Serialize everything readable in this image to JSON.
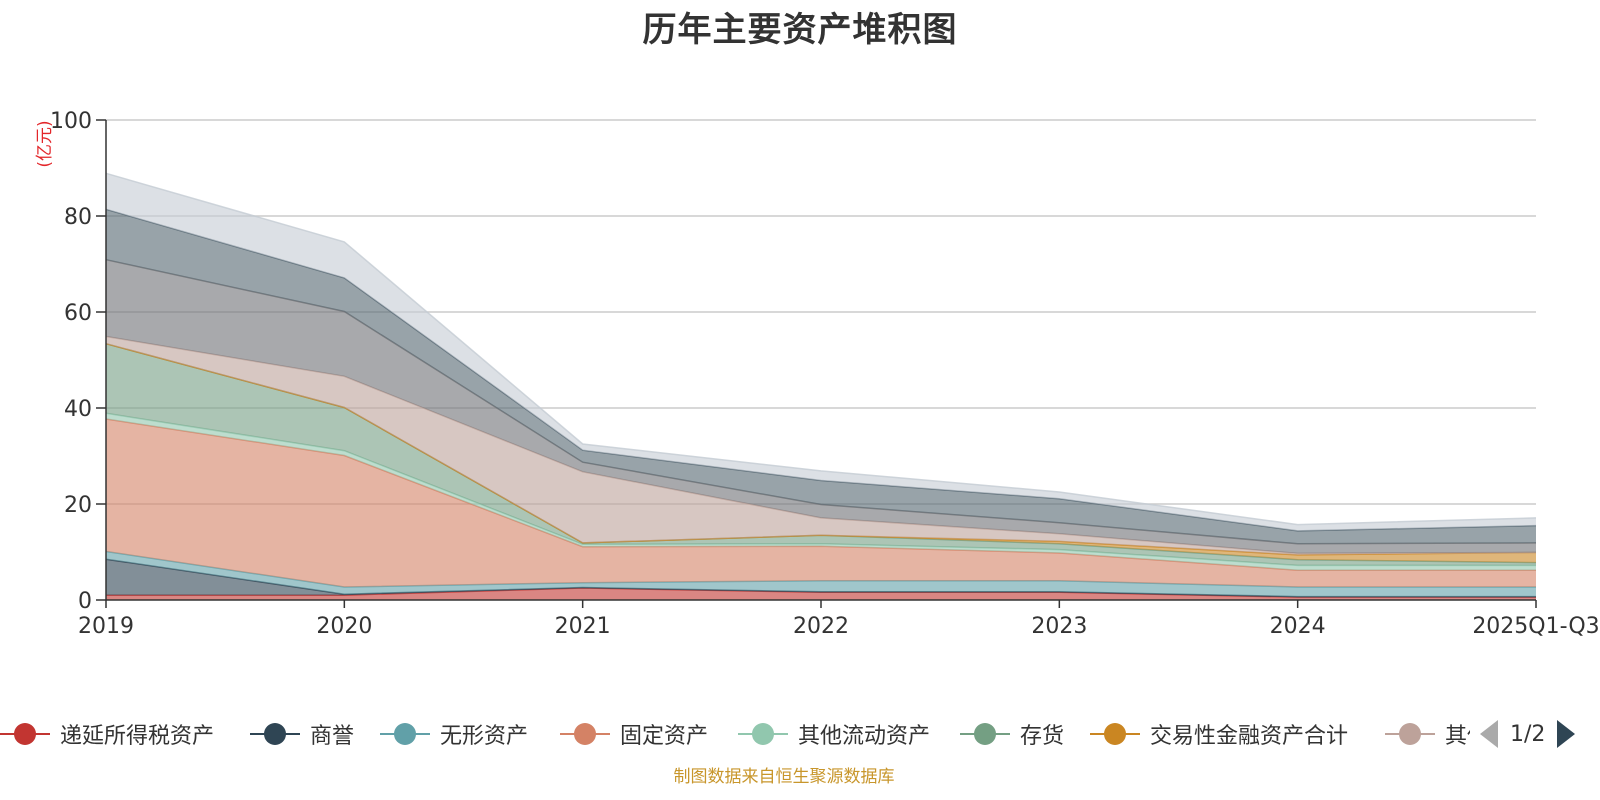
{
  "chart_data": {
    "type": "area",
    "title": "历年主要资产堆积图",
    "ylabel": "(亿元)",
    "ylim": [
      0,
      100
    ],
    "yticks": [
      0,
      20,
      40,
      60,
      80,
      100
    ],
    "categories": [
      "2019",
      "2020",
      "2021",
      "2022",
      "2023",
      "2024",
      "2025Q1-Q3"
    ],
    "series": [
      {
        "name": "递延所得税资产",
        "values": [
          1.0,
          1.0,
          2.5,
          1.6,
          1.6,
          0.6,
          0.6
        ]
      },
      {
        "name": "商誉",
        "values": [
          7.5,
          0.2,
          0.1,
          0.1,
          0.1,
          0.1,
          0.1
        ]
      },
      {
        "name": "无形资产",
        "values": [
          1.6,
          1.5,
          1.0,
          2.3,
          2.3,
          2.0,
          2.0
        ]
      },
      {
        "name": "固定资产",
        "values": [
          27.6,
          27.4,
          7.5,
          7.2,
          5.8,
          3.5,
          3.5
        ]
      },
      {
        "name": "其他流动资产",
        "values": [
          1.2,
          1.0,
          0.5,
          0.5,
          0.7,
          1.0,
          1.0
        ]
      },
      {
        "name": "存货",
        "values": [
          14.5,
          9.0,
          0.3,
          1.8,
          1.2,
          1.2,
          0.6
        ]
      },
      {
        "name": "交易性金融资产合计",
        "values": [
          0,
          0,
          0,
          0,
          0.5,
          1.0,
          2.1
        ]
      },
      {
        "name": "其他",
        "values": [
          1.5,
          6.5,
          14.8,
          3.6,
          1.6,
          0.3,
          0.0
        ]
      },
      {
        "name": "",
        "values": [
          16.0,
          13.5,
          2.0,
          2.8,
          2.3,
          2.0,
          2.0
        ]
      },
      {
        "name": "",
        "values": [
          10.5,
          7.0,
          2.5,
          5.0,
          5.0,
          2.7,
          3.6
        ]
      },
      {
        "name": "",
        "values": [
          7.5,
          7.5,
          1.3,
          2.0,
          1.4,
          1.3,
          1.6
        ]
      }
    ],
    "colors": [
      "#c23531",
      "#2f4554",
      "#61a0a8",
      "#d48265",
      "#91c7ae",
      "#749f83",
      "#ca8622",
      "#bda29a",
      "#6e7074",
      "#546570",
      "#c4ccd3"
    ],
    "legend_position": "bottom",
    "grid": true
  },
  "legend_page": "1/2",
  "source_note": "制图数据来自恒生聚源数据库"
}
